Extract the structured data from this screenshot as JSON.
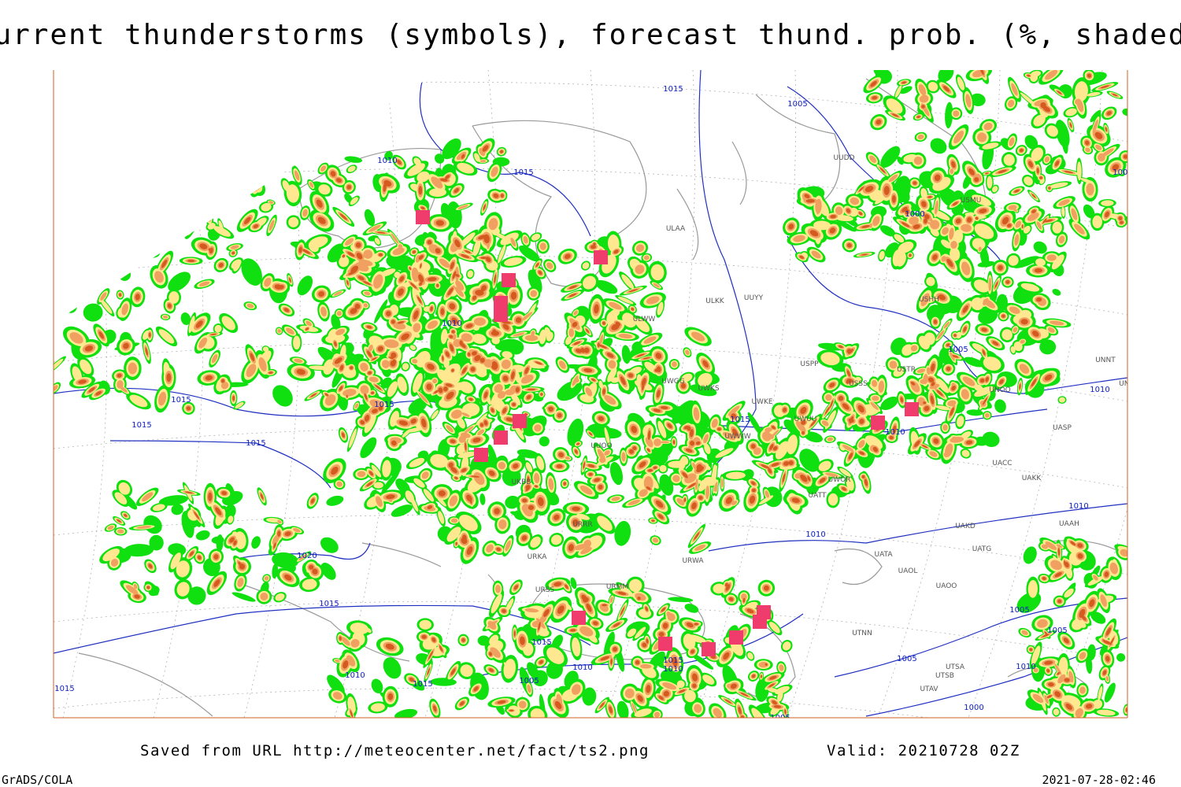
{
  "header": {
    "title": "Current thunderstorms (symbols), forecast thund. prob. (%, shaded)"
  },
  "map": {
    "isobar_labels": [
      "1015",
      "1005",
      "1015",
      "1010",
      "1000",
      "1010",
      "1005",
      "1010",
      "1015",
      "1015",
      "1015",
      "1015",
      "1015",
      "1010",
      "1010",
      "1010",
      "1020",
      "1015",
      "1015",
      "1015",
      "1010",
      "1010",
      "1010",
      "1015",
      "1005",
      "1015",
      "1005",
      "1005",
      "1005",
      "1010",
      "1000",
      "1005",
      "1000"
    ],
    "stations": [
      "ULAA",
      "ULKK",
      "UUYY",
      "ULWW",
      "USPP",
      "UWGG",
      "UWKS",
      "UWKE",
      "UWUU",
      "UWWW",
      "USSS",
      "USTR",
      "UNNT",
      "UNBB",
      "UASP",
      "UACC",
      "UAKK",
      "UAKD",
      "UAAH",
      "UATG",
      "UATA",
      "UAOL",
      "UAOO",
      "UTNN",
      "URWA",
      "URMM",
      "URSS",
      "UTSA",
      "UTSB",
      "UTAV",
      "UUDD",
      "USMU",
      "USHH",
      "UNOO",
      "UWOR",
      "UATT",
      "UUOO",
      "URRR",
      "UKBB",
      "URKA"
    ]
  },
  "footer": {
    "source": "Saved from URL http://meteocenter.net/fact/ts2.png",
    "valid": "Valid: 20210728 02Z",
    "software": "GrADS/COLA",
    "timestamp": "2021-07-28-02:46"
  }
}
